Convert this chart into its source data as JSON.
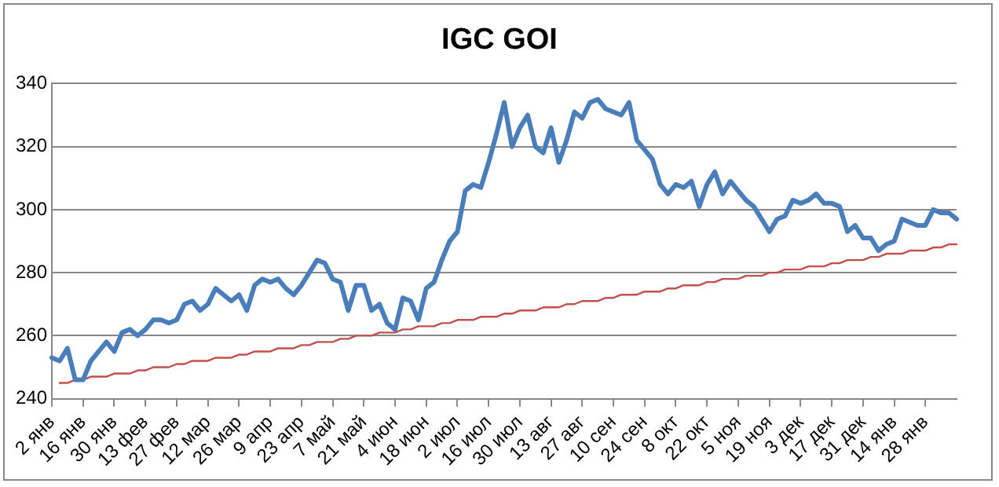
{
  "chart_data": {
    "type": "line",
    "title": "IGC GOI",
    "categories": [
      "2 янв",
      null,
      null,
      null,
      "16 янв",
      null,
      null,
      null,
      "30 янв",
      null,
      null,
      null,
      "13 фев",
      null,
      null,
      null,
      "27 фев",
      null,
      null,
      null,
      "12 мар",
      null,
      null,
      null,
      "26 мар",
      null,
      null,
      null,
      "9 апр",
      null,
      null,
      null,
      "23 апр",
      null,
      null,
      null,
      "7 май",
      null,
      null,
      null,
      "21 май",
      null,
      null,
      null,
      "4 июн",
      null,
      null,
      null,
      "18 июн",
      null,
      null,
      null,
      "2 июл",
      null,
      null,
      null,
      "16 июл",
      null,
      null,
      null,
      "30 июл",
      null,
      null,
      null,
      "13 авг",
      null,
      null,
      null,
      "27 авг",
      null,
      null,
      null,
      "10 сен",
      null,
      null,
      null,
      "24 сен",
      null,
      null,
      null,
      "8 окт",
      null,
      null,
      null,
      "22 окт",
      null,
      null,
      null,
      "5 ноя",
      null,
      null,
      null,
      "19 ноя",
      null,
      null,
      null,
      "3 дек",
      null,
      null,
      null,
      "17 дек",
      null,
      null,
      null,
      "31 дек",
      null,
      null,
      null,
      "14 янв",
      null,
      null,
      null,
      "28 янв",
      null,
      null,
      null,
      null
    ],
    "series": [
      {
        "color": "#4a7ebb",
        "values": [
          253,
          252,
          256,
          246,
          246,
          252,
          255,
          258,
          255,
          261,
          262,
          260,
          262,
          265,
          265,
          264,
          265,
          270,
          271,
          268,
          270,
          275,
          273,
          271,
          273,
          268,
          276,
          278,
          277,
          278,
          275,
          273,
          276,
          280,
          284,
          283,
          278,
          277,
          268,
          276,
          276,
          268,
          270,
          264,
          262,
          272,
          271,
          265,
          275,
          277,
          284,
          290,
          293,
          306,
          308,
          307,
          315,
          324,
          334,
          320,
          326,
          330,
          320,
          318,
          326,
          315,
          322,
          331,
          329,
          334,
          335,
          332,
          331,
          330,
          334,
          322,
          319,
          316,
          308,
          305,
          308,
          307,
          309,
          301,
          308,
          312,
          305,
          309,
          306,
          303,
          301,
          297,
          293,
          297,
          298,
          303,
          302,
          303,
          305,
          302,
          302,
          301,
          293,
          295,
          291,
          291,
          287,
          289,
          290,
          297,
          296,
          295,
          295,
          300,
          299,
          299,
          297
        ]
      },
      {
        "type": "line",
        "color": "#c0504d",
        "values": [
          null,
          245,
          245,
          246,
          246,
          247,
          247,
          247,
          248,
          248,
          248,
          249,
          249,
          250,
          250,
          250,
          251,
          251,
          252,
          252,
          252,
          253,
          253,
          253,
          254,
          254,
          255,
          255,
          255,
          256,
          256,
          256,
          257,
          257,
          258,
          258,
          258,
          259,
          259,
          260,
          260,
          260,
          261,
          261,
          261,
          262,
          262,
          263,
          263,
          263,
          264,
          264,
          265,
          265,
          265,
          266,
          266,
          266,
          267,
          267,
          268,
          268,
          268,
          269,
          269,
          269,
          270,
          270,
          271,
          271,
          271,
          272,
          272,
          273,
          273,
          273,
          274,
          274,
          274,
          275,
          275,
          276,
          276,
          276,
          277,
          277,
          278,
          278,
          278,
          279,
          279,
          279,
          280,
          280,
          281,
          281,
          281,
          282,
          282,
          282,
          283,
          283,
          284,
          284,
          284,
          285,
          285,
          286,
          286,
          286,
          287,
          287,
          287,
          288,
          288,
          289,
          289
        ]
      }
    ],
    "ylim": [
      240,
      340
    ],
    "yticks": [
      240,
      260,
      280,
      300,
      320,
      340
    ],
    "grid": "y",
    "legend": false,
    "marker": "none",
    "line_style": "solid"
  }
}
